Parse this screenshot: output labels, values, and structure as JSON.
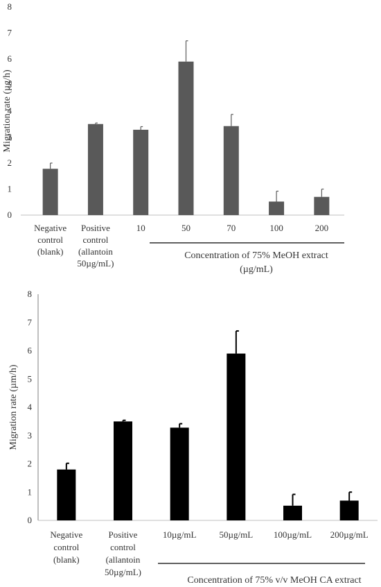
{
  "chart_data": [
    {
      "type": "bar",
      "ylabel": "Migration rate (µg/h)",
      "ylim": [
        0,
        8
      ],
      "yticks": [
        "0",
        "1",
        "2",
        "3",
        "4",
        "5",
        "6",
        "7",
        "8"
      ],
      "categories": [
        [
          "Negative",
          "control",
          "(blank)"
        ],
        [
          "Positive",
          "control",
          "(allantoin",
          "50µg/mL)"
        ],
        [
          "10"
        ],
        [
          "50"
        ],
        [
          "70"
        ],
        [
          "100"
        ],
        [
          "200"
        ]
      ],
      "values": [
        1.78,
        3.5,
        3.28,
        5.9,
        3.42,
        0.52,
        0.7
      ],
      "errors": [
        0.22,
        0.04,
        0.12,
        0.8,
        0.45,
        0.4,
        0.3
      ],
      "bar_color": "#595959",
      "group_label": [
        "Concentration of 75% MeOH extract",
        "(µg/mL)"
      ]
    },
    {
      "type": "bar",
      "ylabel": "Migration rate (µm/h)",
      "ylim": [
        0,
        8
      ],
      "yticks": [
        "0",
        "1",
        "2",
        "3",
        "4",
        "5",
        "6",
        "7",
        "8"
      ],
      "categories": [
        [
          "Negative",
          "control",
          "(blank)"
        ],
        [
          "Positive",
          "control",
          "(allantoin",
          "50µg/mL)"
        ],
        [
          "10µg/mL"
        ],
        [
          "50µg/mL"
        ],
        [
          "100µg/mL"
        ],
        [
          "200µg/mL"
        ]
      ],
      "values": [
        1.8,
        3.5,
        3.28,
        5.9,
        0.52,
        0.7
      ],
      "errors": [
        0.22,
        0.04,
        0.14,
        0.8,
        0.4,
        0.3
      ],
      "bar_color": "#000000",
      "group_label": [
        "Concentration of 75% v/v MeOH CA extract"
      ]
    }
  ]
}
